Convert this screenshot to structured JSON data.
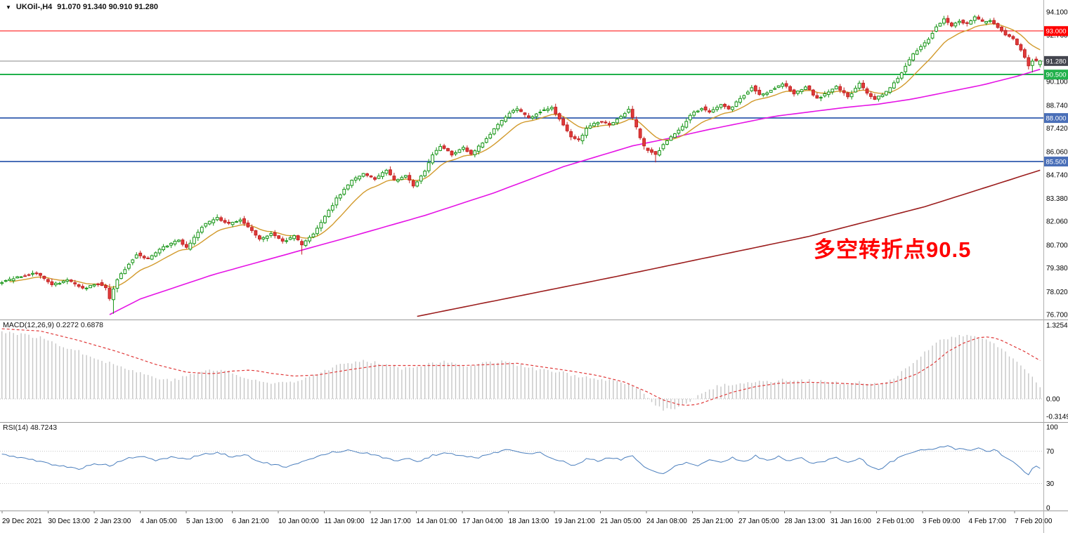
{
  "window": {
    "symbol_title": "UKOil-,H4",
    "ohlc_text": "91.070 91.340 90.910 91.280",
    "background": "#ffffff"
  },
  "annotation": {
    "text": "多空转折点90.5",
    "color": "#ff0000"
  },
  "indicators": {
    "macd_label": "MACD(12,26,9) 0.2272 0.6878",
    "rsi_label": "RSI(14) 48.7243"
  },
  "chart_data": [
    {
      "id": "price",
      "type": "candlestick",
      "symbol": "UKOil-",
      "timeframe": "H4",
      "last": {
        "open": 91.07,
        "high": 91.34,
        "low": 90.91,
        "close": 91.28
      },
      "bars": 271,
      "ylim": [
        76.7,
        94.1
      ],
      "axis_ticks": [
        "94.100",
        "92.760",
        "90.100",
        "88.740",
        "87.420",
        "86.060",
        "84.740",
        "83.380",
        "82.060",
        "80.700",
        "79.380",
        "78.020",
        "76.700"
      ],
      "hlines": [
        {
          "price": 93.0,
          "width": 1,
          "color": "#ff0000",
          "label": "93.000",
          "badge": "#ff0000"
        },
        {
          "price": 88.0,
          "width": 2,
          "color": "#4a6fb8",
          "label": "88.000",
          "badge": "#4a6fb8"
        },
        {
          "price": 85.5,
          "width": 2,
          "color": "#4a6fb8",
          "label": "85.500",
          "badge": "#4a6fb8"
        },
        {
          "price": 90.5,
          "width": 2,
          "color": "#22b14c",
          "label": "90.500",
          "badge": "#22b14c"
        },
        {
          "price": 91.28,
          "width": 1,
          "color": "#8a8a8a",
          "label": "91.280",
          "badge": "#44464f"
        }
      ],
      "colors": {
        "up_border": "#149414",
        "up_fill": "#ffffff",
        "down_border": "#c32222",
        "down_fill": "#e03b3b",
        "ma_fast": "#d29a2c",
        "ma_medium": "#e513e5",
        "ma_slow": "#9b1c1c"
      },
      "price_path": [
        [
          0,
          78.5
        ],
        [
          6,
          78.9
        ],
        [
          10,
          79.1
        ],
        [
          14,
          78.4
        ],
        [
          18,
          78.7
        ],
        [
          22,
          78.2
        ],
        [
          26,
          78.5
        ],
        [
          28,
          78.2
        ],
        [
          29,
          77.6
        ],
        [
          31,
          78.8
        ],
        [
          36,
          80.2
        ],
        [
          39,
          79.9
        ],
        [
          43,
          80.6
        ],
        [
          47,
          81.0
        ],
        [
          49,
          80.5
        ],
        [
          53,
          81.8
        ],
        [
          57,
          82.25
        ],
        [
          60,
          81.9
        ],
        [
          63,
          82.2
        ],
        [
          66,
          81.5
        ],
        [
          68,
          81.0
        ],
        [
          71,
          81.4
        ],
        [
          74,
          80.9
        ],
        [
          77,
          81.2
        ],
        [
          79,
          80.7
        ],
        [
          82,
          81.4
        ],
        [
          84,
          82.0
        ],
        [
          88,
          83.4
        ],
        [
          92,
          84.4
        ],
        [
          95,
          84.8
        ],
        [
          98,
          84.5
        ],
        [
          101,
          85.0
        ],
        [
          103,
          84.4
        ],
        [
          106,
          84.7
        ],
        [
          108,
          84.1
        ],
        [
          111,
          85.0
        ],
        [
          113,
          85.9
        ],
        [
          115,
          86.4
        ],
        [
          118,
          85.9
        ],
        [
          121,
          86.3
        ],
        [
          123,
          85.9
        ],
        [
          126,
          86.6
        ],
        [
          129,
          87.4
        ],
        [
          133,
          88.3
        ],
        [
          135,
          88.5
        ],
        [
          138,
          88.0
        ],
        [
          141,
          88.4
        ],
        [
          144,
          88.6
        ],
        [
          146,
          87.9
        ],
        [
          149,
          86.9
        ],
        [
          151,
          86.7
        ],
        [
          153,
          87.4
        ],
        [
          156,
          87.8
        ],
        [
          159,
          87.6
        ],
        [
          162,
          88.1
        ],
        [
          164,
          88.5
        ],
        [
          166,
          87.4
        ],
        [
          168,
          86.3
        ],
        [
          171,
          85.9
        ],
        [
          173,
          86.5
        ],
        [
          176,
          87.1
        ],
        [
          178,
          87.5
        ],
        [
          180,
          88.2
        ],
        [
          183,
          88.6
        ],
        [
          185,
          88.3
        ],
        [
          188,
          88.8
        ],
        [
          190,
          88.5
        ],
        [
          193,
          89.1
        ],
        [
          196,
          89.8
        ],
        [
          198,
          89.3
        ],
        [
          201,
          89.6
        ],
        [
          204,
          90.0
        ],
        [
          207,
          89.4
        ],
        [
          210,
          89.8
        ],
        [
          213,
          89.1
        ],
        [
          215,
          89.4
        ],
        [
          218,
          89.8
        ],
        [
          221,
          89.2
        ],
        [
          224,
          90.0
        ],
        [
          226,
          89.4
        ],
        [
          228,
          89.1
        ],
        [
          231,
          89.5
        ],
        [
          234,
          90.3
        ],
        [
          236,
          91.0
        ],
        [
          238,
          91.7
        ],
        [
          240,
          92.1
        ],
        [
          242,
          92.6
        ],
        [
          244,
          93.3
        ],
        [
          246,
          93.7
        ],
        [
          248,
          93.3
        ],
        [
          250,
          93.6
        ],
        [
          252,
          93.4
        ],
        [
          254,
          93.8
        ],
        [
          256,
          93.5
        ],
        [
          258,
          93.6
        ],
        [
          260,
          93.2
        ],
        [
          262,
          92.8
        ],
        [
          264,
          92.5
        ],
        [
          266,
          91.9
        ],
        [
          268,
          91.0
        ],
        [
          269,
          91.35
        ],
        [
          270,
          91.28
        ]
      ],
      "spike_lows": {
        "29": 76.75,
        "78": 80.15,
        "170": 85.45,
        "268": 90.62
      },
      "ma_medium_path": [
        [
          28,
          76.7
        ],
        [
          36,
          77.6
        ],
        [
          55,
          79.0
        ],
        [
          73,
          80.1
        ],
        [
          91,
          81.2
        ],
        [
          110,
          82.4
        ],
        [
          128,
          83.7
        ],
        [
          146,
          85.2
        ],
        [
          164,
          86.4
        ],
        [
          175,
          86.9
        ],
        [
          183,
          87.3
        ],
        [
          201,
          88.1
        ],
        [
          219,
          88.6
        ],
        [
          228,
          88.8
        ],
        [
          237,
          89.1
        ],
        [
          246,
          89.5
        ],
        [
          255,
          89.9
        ],
        [
          264,
          90.4
        ],
        [
          270,
          90.8
        ]
      ],
      "ma_slow_path": [
        [
          108,
          76.6
        ],
        [
          160,
          78.9
        ],
        [
          210,
          81.2
        ],
        [
          240,
          82.9
        ],
        [
          270,
          85.0
        ]
      ],
      "x_labels": [
        "29 Dec 2021",
        "30 Dec 13:00",
        "2 Jan 23:00",
        "4 Jan 05:00",
        "5 Jan 13:00",
        "6 Jan 21:00",
        "10 Jan 00:00",
        "11 Jan 09:00",
        "12 Jan 17:00",
        "14 Jan 01:00",
        "17 Jan 04:00",
        "18 Jan 13:00",
        "19 Jan 21:00",
        "21 Jan 05:00",
        "24 Jan 08:00",
        "25 Jan 21:00",
        "27 Jan 05:00",
        "28 Jan 13:00",
        "31 Jan 16:00",
        "2 Feb 01:00",
        "3 Feb 09:00",
        "4 Feb 17:00",
        "7 Feb 20:00"
      ]
    },
    {
      "id": "macd",
      "type": "bar",
      "label": "MACD(12,26,9) 0.2272 0.6878",
      "current_macd": 0.2272,
      "current_signal": 0.6878,
      "ylim": [
        -0.3149,
        1.3254
      ],
      "axis_ticks": [
        "1.3254",
        "0.00",
        "-0.3149"
      ],
      "hist_color": "#c6c6c6",
      "signal_color": "#e03a3a",
      "hist_path": [
        [
          0,
          1.22
        ],
        [
          10,
          1.1
        ],
        [
          20,
          0.85
        ],
        [
          30,
          0.6
        ],
        [
          40,
          0.38
        ],
        [
          45,
          0.34
        ],
        [
          52,
          0.5
        ],
        [
          58,
          0.52
        ],
        [
          64,
          0.35
        ],
        [
          70,
          0.28
        ],
        [
          76,
          0.32
        ],
        [
          82,
          0.46
        ],
        [
          88,
          0.62
        ],
        [
          95,
          0.68
        ],
        [
          100,
          0.63
        ],
        [
          104,
          0.55
        ],
        [
          110,
          0.62
        ],
        [
          115,
          0.66
        ],
        [
          120,
          0.6
        ],
        [
          126,
          0.65
        ],
        [
          131,
          0.68
        ],
        [
          135,
          0.6
        ],
        [
          140,
          0.52
        ],
        [
          146,
          0.47
        ],
        [
          152,
          0.38
        ],
        [
          158,
          0.32
        ],
        [
          163,
          0.27
        ],
        [
          166,
          0.15
        ],
        [
          169,
          -0.06
        ],
        [
          172,
          -0.19
        ],
        [
          176,
          -0.15
        ],
        [
          179,
          -0.05
        ],
        [
          182,
          0.1
        ],
        [
          186,
          0.22
        ],
        [
          190,
          0.27
        ],
        [
          195,
          0.3
        ],
        [
          200,
          0.32
        ],
        [
          205,
          0.35
        ],
        [
          210,
          0.33
        ],
        [
          215,
          0.3
        ],
        [
          220,
          0.26
        ],
        [
          224,
          0.3
        ],
        [
          228,
          0.25
        ],
        [
          232,
          0.35
        ],
        [
          236,
          0.6
        ],
        [
          240,
          0.85
        ],
        [
          244,
          1.05
        ],
        [
          248,
          1.12
        ],
        [
          252,
          1.14
        ],
        [
          255,
          1.1
        ],
        [
          258,
          1.0
        ],
        [
          261,
          0.85
        ],
        [
          264,
          0.65
        ],
        [
          267,
          0.45
        ],
        [
          270,
          0.23
        ]
      ],
      "signal_path": [
        [
          0,
          1.26
        ],
        [
          10,
          1.22
        ],
        [
          20,
          1.05
        ],
        [
          30,
          0.85
        ],
        [
          40,
          0.62
        ],
        [
          48,
          0.48
        ],
        [
          55,
          0.45
        ],
        [
          60,
          0.5
        ],
        [
          65,
          0.52
        ],
        [
          70,
          0.46
        ],
        [
          76,
          0.41
        ],
        [
          82,
          0.43
        ],
        [
          90,
          0.52
        ],
        [
          98,
          0.6
        ],
        [
          105,
          0.6
        ],
        [
          112,
          0.6
        ],
        [
          120,
          0.6
        ],
        [
          128,
          0.62
        ],
        [
          134,
          0.64
        ],
        [
          140,
          0.58
        ],
        [
          148,
          0.5
        ],
        [
          155,
          0.42
        ],
        [
          162,
          0.3
        ],
        [
          168,
          0.12
        ],
        [
          172,
          -0.02
        ],
        [
          177,
          -0.12
        ],
        [
          181,
          -0.1
        ],
        [
          185,
          0.0
        ],
        [
          190,
          0.12
        ],
        [
          196,
          0.22
        ],
        [
          202,
          0.28
        ],
        [
          210,
          0.3
        ],
        [
          218,
          0.28
        ],
        [
          226,
          0.25
        ],
        [
          232,
          0.3
        ],
        [
          238,
          0.45
        ],
        [
          242,
          0.62
        ],
        [
          246,
          0.85
        ],
        [
          250,
          1.0
        ],
        [
          254,
          1.1
        ],
        [
          257,
          1.12
        ],
        [
          260,
          1.05
        ],
        [
          263,
          0.95
        ],
        [
          266,
          0.85
        ],
        [
          270,
          0.6878
        ]
      ]
    },
    {
      "id": "rsi",
      "type": "line",
      "label": "RSI(14) 48.7243",
      "current": 48.7243,
      "ylim": [
        0,
        100
      ],
      "axis_ticks": [
        "100",
        "70",
        "30",
        "0"
      ],
      "levels": [
        70,
        30
      ],
      "color": "#4a7ebd",
      "path": [
        [
          0,
          66
        ],
        [
          5,
          62
        ],
        [
          10,
          57
        ],
        [
          15,
          52
        ],
        [
          20,
          48
        ],
        [
          24,
          55
        ],
        [
          28,
          52
        ],
        [
          32,
          60
        ],
        [
          36,
          64
        ],
        [
          40,
          58
        ],
        [
          44,
          63
        ],
        [
          48,
          60
        ],
        [
          52,
          66
        ],
        [
          56,
          68
        ],
        [
          60,
          63
        ],
        [
          64,
          66
        ],
        [
          66,
          58
        ],
        [
          70,
          54
        ],
        [
          74,
          50
        ],
        [
          78,
          56
        ],
        [
          82,
          64
        ],
        [
          86,
          69
        ],
        [
          90,
          71
        ],
        [
          94,
          68
        ],
        [
          98,
          64
        ],
        [
          102,
          58
        ],
        [
          106,
          62
        ],
        [
          108,
          56
        ],
        [
          112,
          65
        ],
        [
          116,
          68
        ],
        [
          120,
          64
        ],
        [
          124,
          62
        ],
        [
          128,
          68
        ],
        [
          132,
          73
        ],
        [
          134,
          70
        ],
        [
          137,
          66
        ],
        [
          140,
          68
        ],
        [
          143,
          62
        ],
        [
          146,
          57
        ],
        [
          149,
          52
        ],
        [
          152,
          60
        ],
        [
          155,
          58
        ],
        [
          158,
          62
        ],
        [
          161,
          60
        ],
        [
          164,
          65
        ],
        [
          167,
          50
        ],
        [
          170,
          44
        ],
        [
          172,
          42
        ],
        [
          175,
          52
        ],
        [
          178,
          56
        ],
        [
          181,
          52
        ],
        [
          184,
          60
        ],
        [
          187,
          56
        ],
        [
          190,
          62
        ],
        [
          193,
          57
        ],
        [
          196,
          64
        ],
        [
          199,
          59
        ],
        [
          202,
          63
        ],
        [
          205,
          58
        ],
        [
          208,
          62
        ],
        [
          211,
          54
        ],
        [
          214,
          58
        ],
        [
          217,
          63
        ],
        [
          220,
          55
        ],
        [
          223,
          62
        ],
        [
          226,
          50
        ],
        [
          228,
          47
        ],
        [
          231,
          56
        ],
        [
          234,
          64
        ],
        [
          237,
          69
        ],
        [
          240,
          72
        ],
        [
          243,
          74
        ],
        [
          246,
          76
        ],
        [
          248,
          72
        ],
        [
          250,
          74
        ],
        [
          252,
          71
        ],
        [
          254,
          74
        ],
        [
          256,
          70
        ],
        [
          258,
          72
        ],
        [
          260,
          66
        ],
        [
          262,
          60
        ],
        [
          264,
          52
        ],
        [
          266,
          44
        ],
        [
          267,
          42
        ],
        [
          268,
          48
        ],
        [
          269,
          52
        ],
        [
          270,
          48.7
        ]
      ]
    }
  ]
}
